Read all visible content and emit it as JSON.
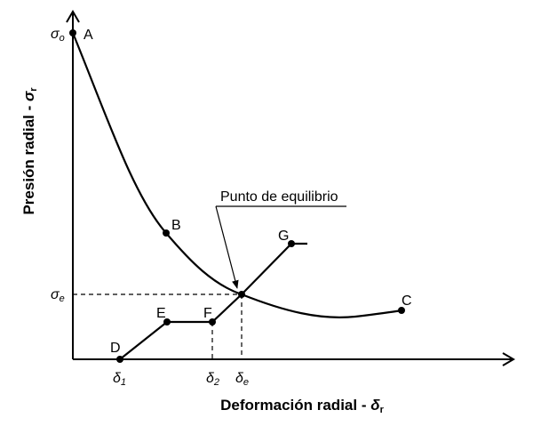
{
  "diagram": {
    "y_axis_label": {
      "text": "Presión radial - ",
      "symbol": "σ",
      "subscript": "r"
    },
    "x_axis_label": {
      "text": "Deformación radial - ",
      "symbol": "δ",
      "subscript": "r"
    },
    "y_marks": [
      {
        "symbol": "σ",
        "subscript": "o"
      },
      {
        "symbol": "σ",
        "subscript": "e"
      }
    ],
    "x_marks": [
      {
        "symbol": "δ",
        "subscript": "1"
      },
      {
        "symbol": "δ",
        "subscript": "2"
      },
      {
        "symbol": "δ",
        "subscript": "e"
      }
    ],
    "points": [
      "A",
      "B",
      "C",
      "D",
      "E",
      "F",
      "G"
    ],
    "annotation": "Punto de equilibrio"
  }
}
